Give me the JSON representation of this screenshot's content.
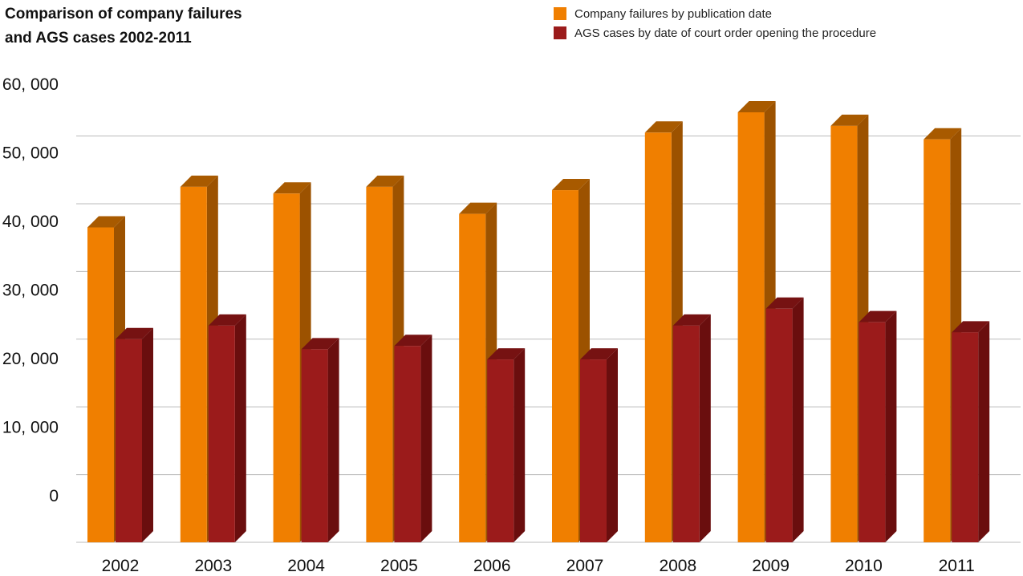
{
  "colors": {
    "series_0_front": "#f07f00",
    "series_0_side": "#9c5200",
    "series_0_top": "#a85a00",
    "series_1_front": "#9b1b1b",
    "series_1_side": "#6a0e0e",
    "series_1_top": "#761212",
    "grid": "#bbbbbb"
  },
  "chart_data": {
    "type": "bar",
    "title_lines": [
      "Comparison of company failures",
      "and AGS cases 2002-2011"
    ],
    "xlabel": "",
    "ylabel": "",
    "categories": [
      "2002",
      "2003",
      "2004",
      "2005",
      "2006",
      "2007",
      "2008",
      "2009",
      "2010",
      "2011"
    ],
    "series": [
      {
        "name": "Company failures by publication date",
        "values": [
          38500,
          44500,
          43500,
          44500,
          40500,
          44000,
          52500,
          55500,
          53500,
          51500
        ]
      },
      {
        "name": "AGS cases by date of court order opening the procedure",
        "values": [
          22000,
          24000,
          20500,
          21000,
          19000,
          19000,
          24000,
          26500,
          24500,
          23000
        ]
      }
    ],
    "ytick_labels": [
      "60, 000",
      "50, 000",
      "40, 000",
      "30, 000",
      "20, 000",
      "10, 000",
      "0"
    ],
    "ylim": [
      -8000,
      60000
    ],
    "grid": true,
    "legend": "top-right"
  }
}
